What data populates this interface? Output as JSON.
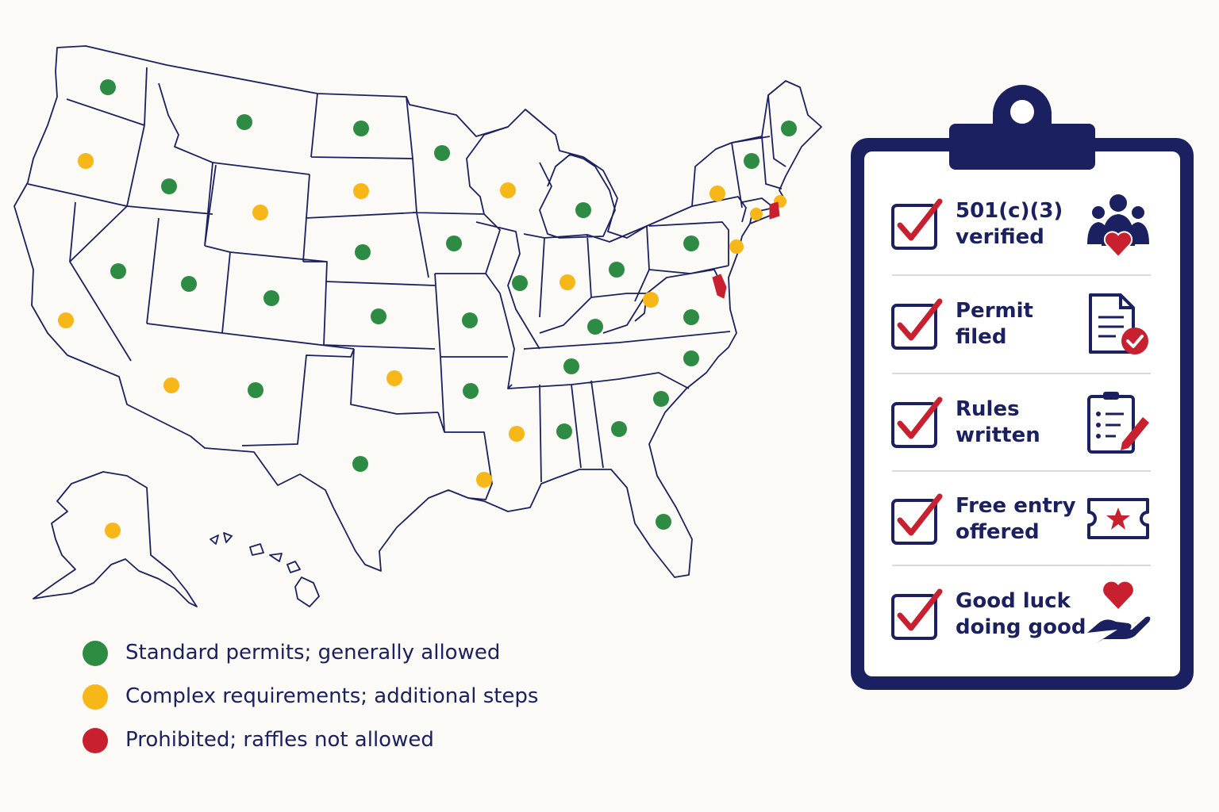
{
  "colors": {
    "navy": "#1b2160",
    "red": "#c8202f",
    "green": "#2e8b43",
    "yellow": "#f7b718"
  },
  "legend": [
    {
      "label": "Standard permits; generally allowed",
      "color": "#2e8b43"
    },
    {
      "label": "Complex requirements; additional steps",
      "color": "#f7b718"
    },
    {
      "label": "Prohibited; raffles not allowed",
      "color": "#c8202f"
    }
  ],
  "checklist": [
    {
      "label": "501(c)(3) verified",
      "icon": "people-heart-icon"
    },
    {
      "label": "Permit filed",
      "icon": "document-check-icon"
    },
    {
      "label": "Rules written",
      "icon": "clipboard-pencil-icon"
    },
    {
      "label": "Free entry offered",
      "icon": "ticket-star-icon"
    },
    {
      "label": "Good luck doing good",
      "icon": "hand-heart-icon"
    }
  ]
}
